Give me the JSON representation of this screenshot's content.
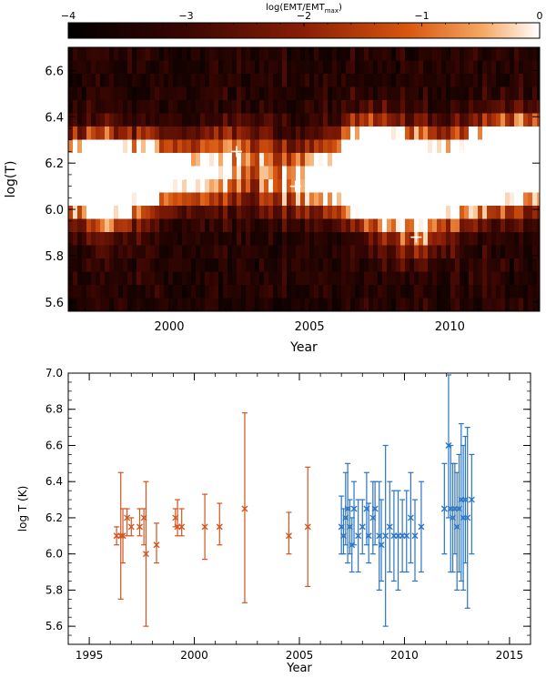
{
  "chart_data": [
    {
      "type": "heatmap",
      "colorbar": {
        "label": "log(EMT/EMT",
        "label_sub": "max",
        "label_close": ")",
        "ticks": [
          -4,
          -3,
          -2,
          -1,
          0
        ],
        "tick_labels": [
          "−4",
          "−3",
          "−2",
          "−1",
          "0"
        ],
        "range": [
          -4,
          0
        ]
      },
      "xlabel": "Year",
      "ylabel": "log(T)",
      "xlim": [
        1996.4,
        2013.2
      ],
      "ylim": [
        5.56,
        6.7
      ],
      "x_ticks": [
        2000,
        2005,
        2010
      ],
      "y_ticks": [
        5.6,
        5.8,
        6.0,
        6.2,
        6.4,
        6.6
      ],
      "y_tick_labels": [
        "5.6",
        "5.8",
        "6.0",
        "6.2",
        "6.4",
        "6.6"
      ],
      "peak_markers": [
        {
          "x": 1996.6,
          "y": 6.15
        },
        {
          "x": 1996.7,
          "y": 6.1
        },
        {
          "x": 1996.9,
          "y": 6.2
        },
        {
          "x": 1997.1,
          "y": 6.15
        },
        {
          "x": 1997.5,
          "y": 6.2
        },
        {
          "x": 1997.6,
          "y": 6.15
        },
        {
          "x": 1997.7,
          "y": 6.0
        },
        {
          "x": 1998.1,
          "y": 6.05
        },
        {
          "x": 1999.1,
          "y": 6.2
        },
        {
          "x": 1999.3,
          "y": 6.15
        },
        {
          "x": 2000.5,
          "y": 6.15
        },
        {
          "x": 2001.2,
          "y": 6.15
        },
        {
          "x": 2002.4,
          "y": 6.25
        },
        {
          "x": 2004.5,
          "y": 6.1
        },
        {
          "x": 2005.4,
          "y": 6.15
        },
        {
          "x": 2007.0,
          "y": 6.15
        },
        {
          "x": 2007.1,
          "y": 6.1
        },
        {
          "x": 2007.2,
          "y": 6.3
        },
        {
          "x": 2007.3,
          "y": 6.05
        },
        {
          "x": 2007.4,
          "y": 6.2
        },
        {
          "x": 2007.5,
          "y": 6.15
        },
        {
          "x": 2007.6,
          "y": 6.25
        },
        {
          "x": 2007.8,
          "y": 6.1
        },
        {
          "x": 2008.0,
          "y": 6.05
        },
        {
          "x": 2008.2,
          "y": 6.15
        },
        {
          "x": 2008.4,
          "y": 6.2
        },
        {
          "x": 2008.6,
          "y": 6.1
        },
        {
          "x": 2008.8,
          "y": 5.88
        },
        {
          "x": 2009.0,
          "y": 6.1
        },
        {
          "x": 2009.2,
          "y": 6.15
        },
        {
          "x": 2009.5,
          "y": 6.1
        },
        {
          "x": 2009.8,
          "y": 6.05
        },
        {
          "x": 2010.1,
          "y": 6.1
        },
        {
          "x": 2010.4,
          "y": 6.25
        },
        {
          "x": 2010.8,
          "y": 6.15
        },
        {
          "x": 2011.8,
          "y": 6.25
        },
        {
          "x": 2012.0,
          "y": 6.2
        },
        {
          "x": 2012.2,
          "y": 6.1
        },
        {
          "x": 2012.4,
          "y": 6.25
        },
        {
          "x": 2012.6,
          "y": 6.15
        },
        {
          "x": 2012.8,
          "y": 6.3
        },
        {
          "x": 2013.0,
          "y": 6.2
        }
      ]
    },
    {
      "type": "scatter",
      "xlabel": "Year",
      "ylabel": "log T (K)",
      "xlim": [
        1994,
        2016
      ],
      "ylim": [
        5.5,
        7.0
      ],
      "x_ticks": [
        1995,
        2000,
        2005,
        2010,
        2015
      ],
      "y_ticks": [
        5.6,
        5.8,
        6.0,
        6.2,
        6.4,
        6.6,
        6.8,
        7.0
      ],
      "y_tick_labels": [
        "5.6",
        "5.8",
        "6.0",
        "6.2",
        "6.4",
        "6.6",
        "6.8",
        "7.0"
      ],
      "colors": {
        "orange": "#d2541f",
        "blue": "#2a74c6"
      },
      "series": [
        {
          "color_key": "orange",
          "points": [
            {
              "x": 1996.3,
              "y": 6.1,
              "lo": 6.05,
              "hi": 6.15
            },
            {
              "x": 1996.5,
              "y": 6.1,
              "lo": 5.75,
              "hi": 6.45
            },
            {
              "x": 1996.6,
              "y": 6.1,
              "lo": 5.95,
              "hi": 6.25
            },
            {
              "x": 1996.8,
              "y": 6.2,
              "lo": 6.1,
              "hi": 6.25
            },
            {
              "x": 1997.0,
              "y": 6.15,
              "lo": 6.1,
              "hi": 6.2
            },
            {
              "x": 1997.4,
              "y": 6.15,
              "lo": 6.1,
              "hi": 6.25
            },
            {
              "x": 1997.6,
              "y": 6.2,
              "lo": 6.05,
              "hi": 6.25
            },
            {
              "x": 1997.7,
              "y": 6.0,
              "lo": 5.6,
              "hi": 6.4
            },
            {
              "x": 1998.2,
              "y": 6.05,
              "lo": 5.95,
              "hi": 6.17
            },
            {
              "x": 1999.1,
              "y": 6.2,
              "lo": 6.15,
              "hi": 6.25
            },
            {
              "x": 1999.2,
              "y": 6.15,
              "lo": 6.1,
              "hi": 6.3
            },
            {
              "x": 1999.4,
              "y": 6.15,
              "lo": 6.1,
              "hi": 6.25
            },
            {
              "x": 2000.5,
              "y": 6.15,
              "lo": 5.97,
              "hi": 6.33
            },
            {
              "x": 2001.2,
              "y": 6.15,
              "lo": 6.05,
              "hi": 6.28
            },
            {
              "x": 2002.4,
              "y": 6.25,
              "lo": 5.73,
              "hi": 6.78
            },
            {
              "x": 2004.5,
              "y": 6.1,
              "lo": 6.0,
              "hi": 6.23
            },
            {
              "x": 2005.4,
              "y": 6.15,
              "lo": 5.82,
              "hi": 6.48
            }
          ]
        },
        {
          "color_key": "blue",
          "points": [
            {
              "x": 2007.0,
              "y": 6.15,
              "lo": 6.0,
              "hi": 6.32
            },
            {
              "x": 2007.1,
              "y": 6.1,
              "lo": 6.0,
              "hi": 6.25
            },
            {
              "x": 2007.2,
              "y": 6.2,
              "lo": 6.05,
              "hi": 6.45
            },
            {
              "x": 2007.3,
              "y": 6.25,
              "lo": 5.95,
              "hi": 6.5
            },
            {
              "x": 2007.4,
              "y": 6.15,
              "lo": 6.0,
              "hi": 6.3
            },
            {
              "x": 2007.5,
              "y": 6.05,
              "lo": 5.9,
              "hi": 6.2
            },
            {
              "x": 2007.6,
              "y": 6.25,
              "lo": 6.05,
              "hi": 6.4
            },
            {
              "x": 2007.8,
              "y": 6.1,
              "lo": 5.9,
              "hi": 6.3
            },
            {
              "x": 2008.0,
              "y": 6.15,
              "lo": 6.0,
              "hi": 6.3
            },
            {
              "x": 2008.2,
              "y": 6.25,
              "lo": 6.05,
              "hi": 6.45
            },
            {
              "x": 2008.3,
              "y": 6.1,
              "lo": 5.95,
              "hi": 6.28
            },
            {
              "x": 2008.5,
              "y": 6.2,
              "lo": 6.0,
              "hi": 6.4
            },
            {
              "x": 2008.6,
              "y": 6.25,
              "lo": 6.05,
              "hi": 6.4
            },
            {
              "x": 2008.8,
              "y": 6.1,
              "lo": 5.8,
              "hi": 6.4
            },
            {
              "x": 2008.9,
              "y": 6.05,
              "lo": 5.85,
              "hi": 6.3
            },
            {
              "x": 2009.1,
              "y": 6.1,
              "lo": 5.6,
              "hi": 6.6
            },
            {
              "x": 2009.3,
              "y": 6.15,
              "lo": 5.9,
              "hi": 6.4
            },
            {
              "x": 2009.5,
              "y": 6.1,
              "lo": 5.85,
              "hi": 6.35
            },
            {
              "x": 2009.7,
              "y": 6.1,
              "lo": 5.8,
              "hi": 6.35
            },
            {
              "x": 2009.9,
              "y": 6.1,
              "lo": 5.9,
              "hi": 6.3
            },
            {
              "x": 2010.1,
              "y": 6.1,
              "lo": 5.9,
              "hi": 6.35
            },
            {
              "x": 2010.3,
              "y": 6.2,
              "lo": 5.95,
              "hi": 6.45
            },
            {
              "x": 2010.5,
              "y": 6.1,
              "lo": 5.85,
              "hi": 6.3
            },
            {
              "x": 2010.8,
              "y": 6.15,
              "lo": 5.9,
              "hi": 6.4
            },
            {
              "x": 2011.9,
              "y": 6.25,
              "lo": 6.0,
              "hi": 6.5
            },
            {
              "x": 2012.1,
              "y": 6.6,
              "lo": 6.2,
              "hi": 6.99
            },
            {
              "x": 2012.2,
              "y": 6.25,
              "lo": 5.9,
              "hi": 6.6
            },
            {
              "x": 2012.3,
              "y": 6.2,
              "lo": 5.9,
              "hi": 6.5
            },
            {
              "x": 2012.4,
              "y": 6.25,
              "lo": 6.0,
              "hi": 6.5
            },
            {
              "x": 2012.5,
              "y": 6.15,
              "lo": 5.8,
              "hi": 6.45
            },
            {
              "x": 2012.6,
              "y": 6.25,
              "lo": 5.9,
              "hi": 6.55
            },
            {
              "x": 2012.7,
              "y": 6.3,
              "lo": 5.85,
              "hi": 6.72
            },
            {
              "x": 2012.8,
              "y": 6.2,
              "lo": 5.8,
              "hi": 6.6
            },
            {
              "x": 2012.9,
              "y": 6.3,
              "lo": 5.95,
              "hi": 6.65
            },
            {
              "x": 2013.0,
              "y": 6.2,
              "lo": 5.7,
              "hi": 6.7
            },
            {
              "x": 2013.2,
              "y": 6.3,
              "lo": 6.0,
              "hi": 6.55
            }
          ]
        }
      ]
    }
  ]
}
